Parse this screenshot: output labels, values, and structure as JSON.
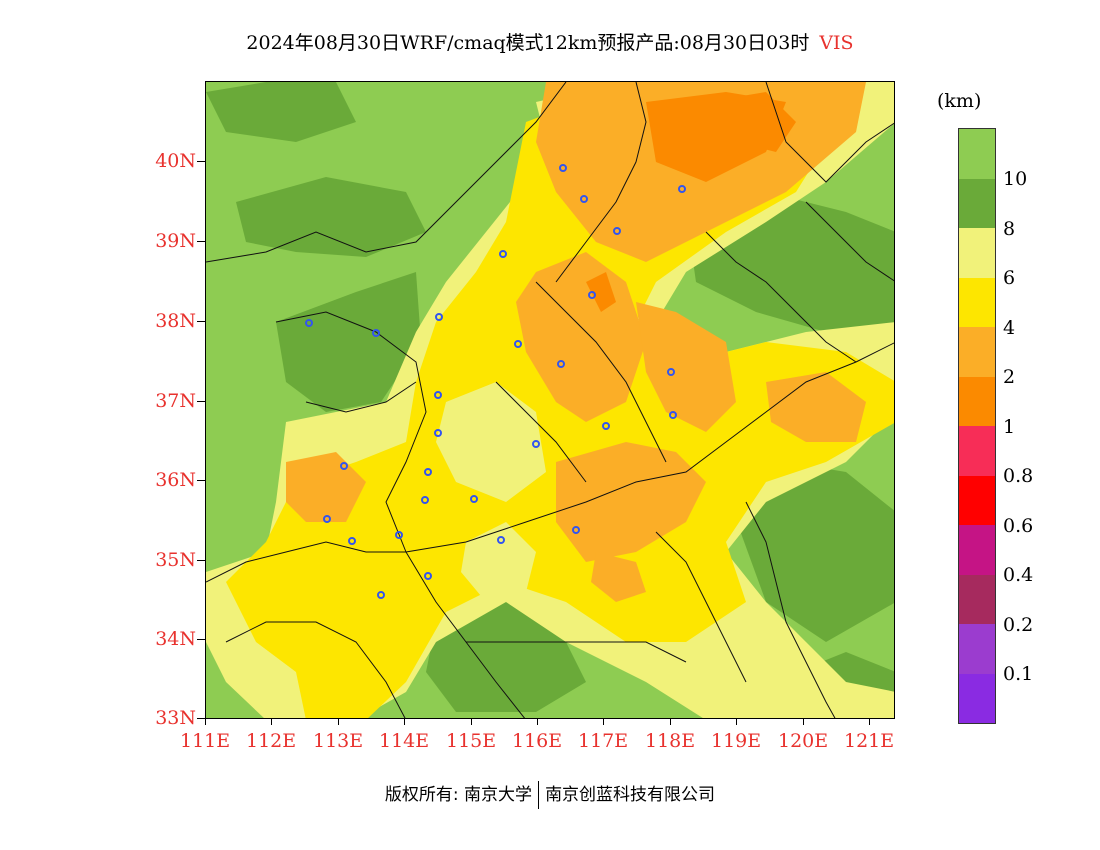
{
  "title": {
    "main": "2024年08月30日WRF/cmaq模式12km预报产品:08月30日03时",
    "variable": "VIS"
  },
  "colors": {
    "accent_red": "#e8322e",
    "station_blue": "#3355ee",
    "border_black": "#111111"
  },
  "map": {
    "latitude_labels": [
      "40N",
      "39N",
      "38N",
      "37N",
      "36N",
      "35N",
      "34N",
      "33N"
    ],
    "longitude_labels": [
      "111E",
      "112E",
      "113E",
      "114E",
      "115E",
      "116E",
      "117E",
      "118E",
      "119E",
      "120E",
      "121E"
    ],
    "lat_range": [
      33,
      41
    ],
    "lon_range": [
      111,
      121.4
    ]
  },
  "legend": {
    "unit": "(km)",
    "bins": [
      {
        "label": "",
        "color": "#8ecc52"
      },
      {
        "label": "10",
        "color": "#6aaa39"
      },
      {
        "label": "8",
        "color": "#f1f27a"
      },
      {
        "label": "6",
        "color": "#fde600"
      },
      {
        "label": "4",
        "color": "#fbae27"
      },
      {
        "label": "2",
        "color": "#fb8a00"
      },
      {
        "label": "1",
        "color": "#f72d57"
      },
      {
        "label": "0.8",
        "color": "#ff0000"
      },
      {
        "label": "0.6",
        "color": "#c51485"
      },
      {
        "label": "0.4",
        "color": "#a62a5e"
      },
      {
        "label": "0.2",
        "color": "#9b3ccf"
      },
      {
        "label": "0.1",
        "color": "#8a2be2"
      }
    ]
  },
  "footer": {
    "left": "版权所有: 南京大学",
    "right": "南京创蓝科技有限公司"
  }
}
